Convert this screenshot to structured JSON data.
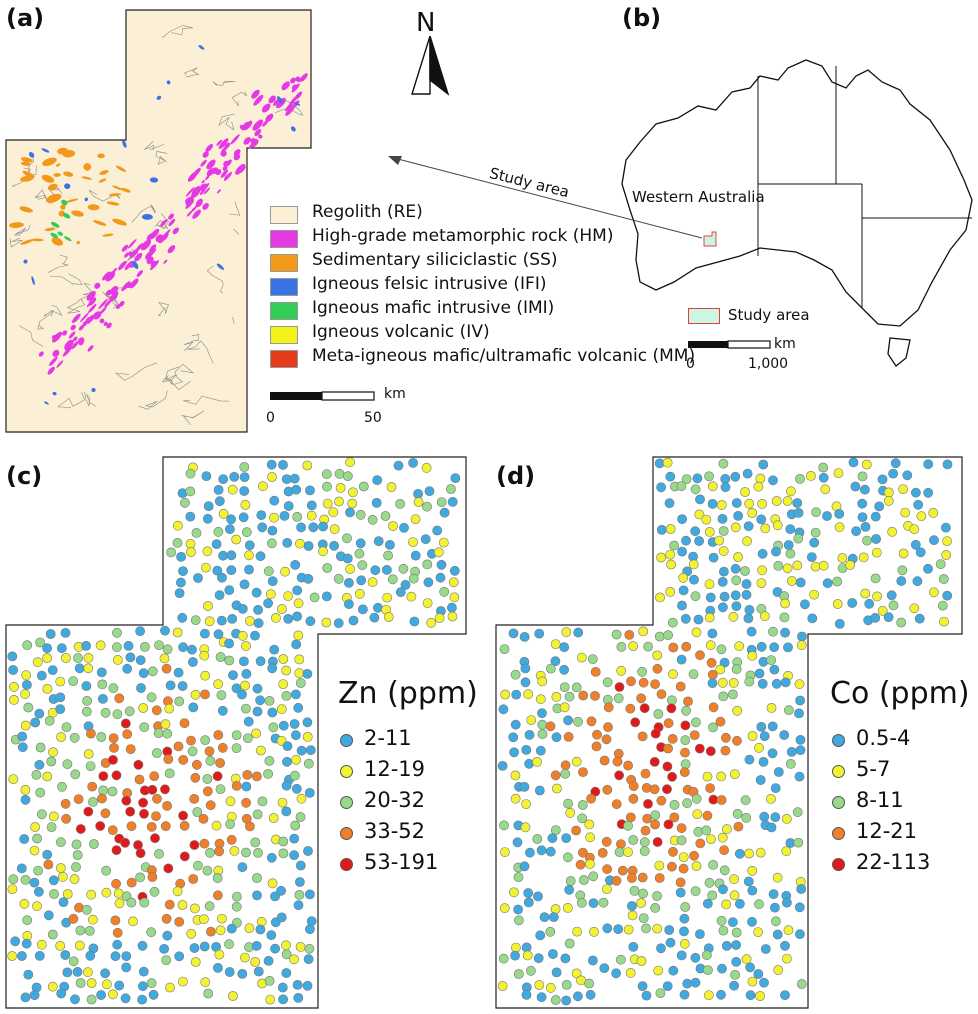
{
  "panels": {
    "a": {
      "label": "(a)"
    },
    "b": {
      "label": "(b)"
    },
    "c": {
      "label": "(c)"
    },
    "d": {
      "label": "(d)"
    }
  },
  "north_arrow": {
    "label": "N"
  },
  "geology_legend": [
    {
      "label": "Regolith (RE)",
      "color": "#fbefd6"
    },
    {
      "label": "High-grade metamorphic rock (HM)",
      "color": "#e639e6"
    },
    {
      "label": "Sedimentary siliciclastic (SS)",
      "color": "#f2991a"
    },
    {
      "label": "Igneous felsic intrusive (IFI)",
      "color": "#3a72e6"
    },
    {
      "label": "Igneous mafic intrusive (IMI)",
      "color": "#33cc55"
    },
    {
      "label": "Igneous volcanic (IV)",
      "color": "#f2f21a"
    },
    {
      "label": "Meta-igneous mafic/ultramafic volcanic (MM)",
      "color": "#e63a1a"
    }
  ],
  "scale_a": {
    "start": "0",
    "end": "50",
    "unit": "km"
  },
  "australia": {
    "state_label": "Western Australia",
    "arrow_label": "Study area",
    "legend_label": "Study area",
    "scale_start": "0",
    "scale_end": "1,000",
    "scale_unit": "km",
    "study_area_color": "#ccf5e6"
  },
  "zn_legend": {
    "title": "Zn (ppm)",
    "classes": [
      {
        "label": "2-11",
        "color": "#3fa9e0"
      },
      {
        "label": "12-19",
        "color": "#f2f233"
      },
      {
        "label": "20-32",
        "color": "#99d98c"
      },
      {
        "label": "33-52",
        "color": "#f07f2a"
      },
      {
        "label": "53-191",
        "color": "#e01a1a"
      }
    ]
  },
  "co_legend": {
    "title": "Co (ppm)",
    "classes": [
      {
        "label": "0.5-4",
        "color": "#3fa9e0"
      },
      {
        "label": "5-7",
        "color": "#f2f233"
      },
      {
        "label": "8-11",
        "color": "#99d98c"
      },
      {
        "label": "12-21",
        "color": "#f07f2a"
      },
      {
        "label": "22-113",
        "color": "#e01a1a"
      }
    ]
  }
}
